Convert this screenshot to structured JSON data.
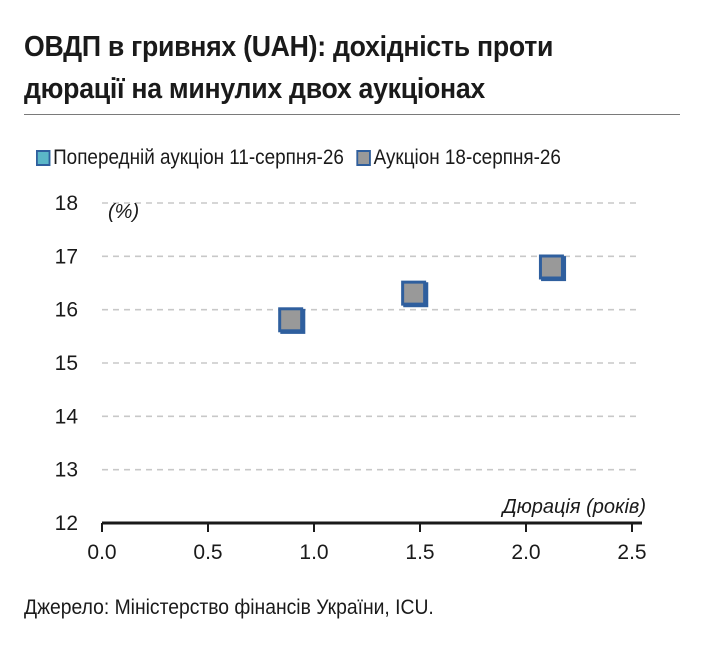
{
  "header": {
    "title_line1": "ОВДП в гривнях (UAH): дохідність проти",
    "title_line2": "дюрації на минулих двох аукціонах"
  },
  "footer": {
    "source": "Джерело: Міністерство фінансів України, ICU."
  },
  "chart_data": {
    "type": "scatter",
    "ylabel": "(%)",
    "xlabel": "Дюрація (років)",
    "xlim": [
      0.0,
      2.5
    ],
    "ylim": [
      12,
      18
    ],
    "x_ticks": [
      "0.0",
      "0.5",
      "1.0",
      "1.5",
      "2.0",
      "2.5"
    ],
    "y_ticks": [
      "12",
      "13",
      "14",
      "15",
      "16",
      "17",
      "18"
    ],
    "grid": true,
    "legend_position": "top",
    "series": [
      {
        "name": "Попередній аукціон 11-серпня-26",
        "color": "#5bb7c8",
        "points": [
          {
            "x": 0.9,
            "y": 15.78
          },
          {
            "x": 1.48,
            "y": 16.28
          },
          {
            "x": 2.13,
            "y": 16.77
          }
        ]
      },
      {
        "name": "Аукціон 18-серпня-26",
        "color": "#999999",
        "points": [
          {
            "x": 0.89,
            "y": 15.81
          },
          {
            "x": 1.47,
            "y": 16.31
          },
          {
            "x": 2.12,
            "y": 16.8
          }
        ]
      }
    ]
  }
}
